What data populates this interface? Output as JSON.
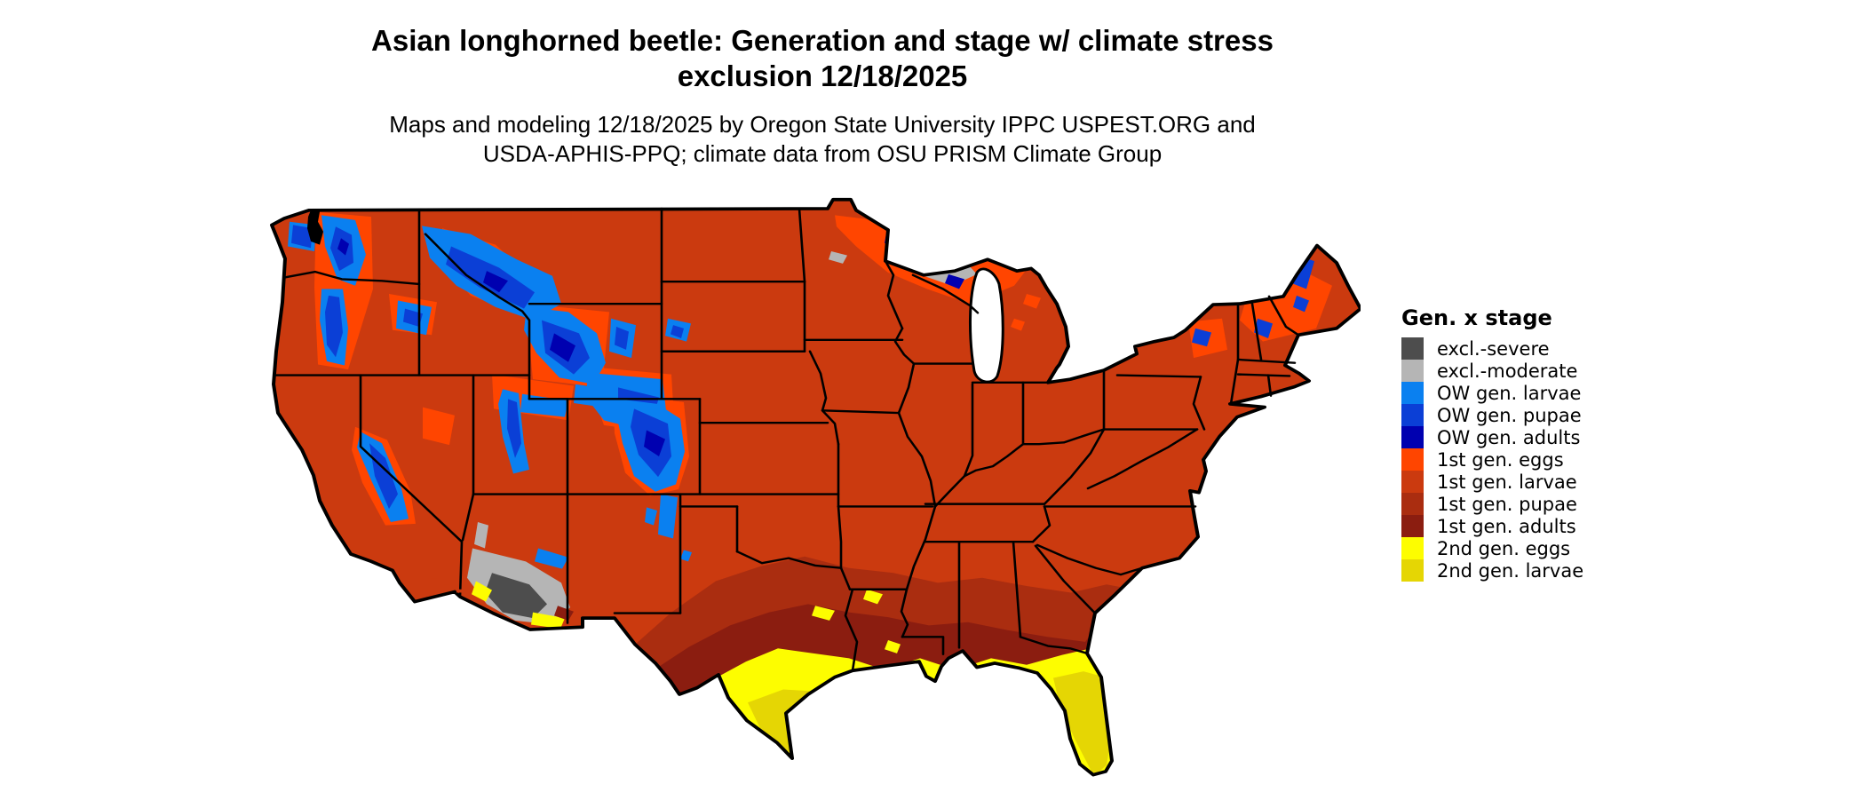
{
  "header": {
    "title_line1": "Asian longhorned beetle: Generation and stage w/ climate stress",
    "title_line2": "exclusion 12/18/2025",
    "subtitle_line1": "Maps and modeling 12/18/2025 by Oregon State University IPPC USPEST.ORG and",
    "subtitle_line2": "USDA-APHIS-PPQ; climate data from OSU PRISM Climate Group"
  },
  "legend": {
    "title": "Gen. x stage",
    "items": [
      {
        "label": "excl.-severe",
        "color_key": "excl_severe"
      },
      {
        "label": "excl.-moderate",
        "color_key": "excl_moderate"
      },
      {
        "label": "OW gen. larvae",
        "color_key": "ow_larvae"
      },
      {
        "label": "OW gen. pupae",
        "color_key": "ow_pupae"
      },
      {
        "label": "OW gen. adults",
        "color_key": "ow_adults"
      },
      {
        "label": "1st gen. eggs",
        "color_key": "gen1_eggs"
      },
      {
        "label": "1st gen. larvae",
        "color_key": "gen1_larvae"
      },
      {
        "label": "1st gen. pupae",
        "color_key": "gen1_pupae"
      },
      {
        "label": "1st gen. adults",
        "color_key": "gen1_adults"
      },
      {
        "label": "2nd gen. eggs",
        "color_key": "gen2_eggs"
      },
      {
        "label": "2nd gen. larvae",
        "color_key": "gen2_larvae"
      }
    ]
  },
  "palette": {
    "excl_severe": "#4D4D4D",
    "excl_moderate": "#B5B5B5",
    "ow_larvae": "#0A80F0",
    "ow_pupae": "#0B3FD6",
    "ow_adults": "#0000B0",
    "gen1_eggs": "#FF4500",
    "gen1_larvae": "#CB3A0F",
    "gen1_pupae": "#AA2D10",
    "gen1_adults": "#8B1D10",
    "gen2_eggs": "#FDFD00",
    "gen2_larvae": "#E5D604",
    "background": "#FFFFFF",
    "border_black": "#000000"
  },
  "map": {
    "region_label": "Contiguous United States"
  }
}
